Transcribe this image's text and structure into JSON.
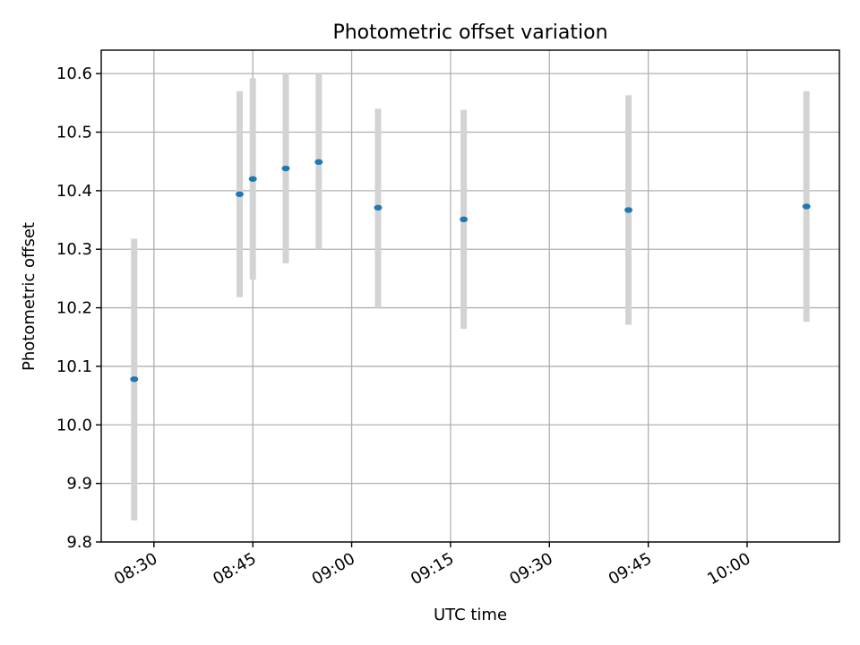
{
  "chart_data": {
    "type": "scatter",
    "title": "Photometric offset variation",
    "xlabel": "UTC time",
    "ylabel": "Photometric offset",
    "xlim": [
      "08:22",
      "10:14"
    ],
    "ylim": [
      9.8,
      10.64
    ],
    "x_ticks": [
      "08:30",
      "08:45",
      "09:00",
      "09:15",
      "09:30",
      "09:45",
      "10:00"
    ],
    "y_ticks": [
      "9.8",
      "9.9",
      "10.0",
      "10.1",
      "10.2",
      "10.3",
      "10.4",
      "10.5",
      "10.6"
    ],
    "grid": true,
    "colors": {
      "point": "#1f77b4",
      "errorbar": "#d3d3d3",
      "grid": "#b0b0b0"
    },
    "series": [
      {
        "points": [
          {
            "x": "08:27",
            "y": 10.078,
            "low": 9.837,
            "high": 10.318
          },
          {
            "x": "08:43",
            "y": 10.394,
            "low": 10.218,
            "high": 10.57
          },
          {
            "x": "08:45",
            "y": 10.42,
            "low": 10.248,
            "high": 10.592
          },
          {
            "x": "08:50",
            "y": 10.438,
            "low": 10.276,
            "high": 10.6
          },
          {
            "x": "08:55",
            "y": 10.449,
            "low": 10.3,
            "high": 10.6
          },
          {
            "x": "09:04",
            "y": 10.371,
            "low": 10.2,
            "high": 10.54
          },
          {
            "x": "09:17",
            "y": 10.351,
            "low": 10.164,
            "high": 10.538
          },
          {
            "x": "09:42",
            "y": 10.367,
            "low": 10.171,
            "high": 10.563
          },
          {
            "x": "10:09",
            "y": 10.373,
            "low": 10.176,
            "high": 10.57
          }
        ]
      }
    ]
  }
}
